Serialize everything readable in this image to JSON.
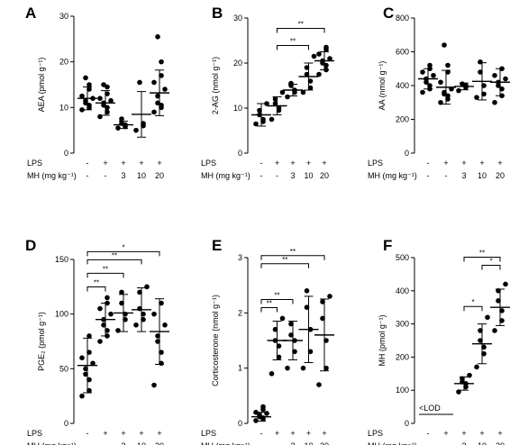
{
  "figure": {
    "row_labels": {
      "lps": "LPS",
      "mh": "MH (mg kg⁻¹)"
    }
  },
  "chart_data": [
    {
      "type": "scatter",
      "panel": "A",
      "ylabel": "AEA (pmol g⁻¹)",
      "ylim": [
        0,
        30
      ],
      "yticks": [
        0,
        10,
        20,
        30
      ],
      "groups": [
        {
          "lps": "-",
          "mh": "-",
          "points": [
            9.5,
            10,
            10.5,
            11,
            11.5,
            12,
            12.5,
            14,
            15,
            16.5
          ],
          "mean": 12,
          "sd": 2.5
        },
        {
          "lps": "+",
          "mh": "-",
          "points": [
            8,
            9,
            10,
            10.5,
            11,
            11.5,
            12,
            13,
            14.5,
            15
          ],
          "mean": 11,
          "sd": 2.7
        },
        {
          "lps": "+",
          "mh": "3",
          "points": [
            5.5,
            5.8,
            6.2,
            6.5,
            7.5
          ],
          "mean": 6.2,
          "sd": 0.8
        },
        {
          "lps": "+",
          "mh": "10",
          "points": [
            5,
            6,
            6.5,
            15.5
          ],
          "mean": 8.5,
          "sd": 5
        },
        {
          "lps": "+",
          "mh": "20",
          "points": [
            9,
            10,
            10.5,
            11,
            12.5,
            14,
            15.5,
            17,
            20,
            25.5
          ],
          "mean": 13.2,
          "sd": 5
        }
      ],
      "comparisons": []
    },
    {
      "type": "scatter",
      "panel": "B",
      "ylabel": "2-AG (nmol g⁻¹)",
      "ylim": [
        0,
        30
      ],
      "yticks": [
        0,
        10,
        20,
        30
      ],
      "groups": [
        {
          "lps": "-",
          "mh": "-",
          "points": [
            6.5,
            7,
            7.5,
            8.5,
            9.5,
            11
          ],
          "mean": 8.5,
          "sd": 2.5
        },
        {
          "lps": "+",
          "mh": "-",
          "points": [
            7.5,
            9.5,
            10,
            11,
            12,
            13.5
          ],
          "mean": 10.5,
          "sd": 2
        },
        {
          "lps": "+",
          "mh": "3",
          "points": [
            12.5,
            13.5,
            14,
            15,
            15.5
          ],
          "mean": 14,
          "sd": 1.3
        },
        {
          "lps": "+",
          "mh": "10",
          "points": [
            13.5,
            14.5,
            16,
            17.5,
            19,
            21.5
          ],
          "mean": 17,
          "sd": 3
        },
        {
          "lps": "+",
          "mh": "20",
          "points": [
            17.5,
            18.5,
            19.5,
            20,
            20.5,
            21,
            22,
            23,
            23.5
          ],
          "mean": 20.5,
          "sd": 2
        }
      ],
      "comparisons": [
        {
          "from": 1,
          "to": 4,
          "label": "**"
        },
        {
          "from": 1,
          "to": 3,
          "label": "**"
        }
      ]
    },
    {
      "type": "scatter",
      "panel": "C",
      "ylabel": "AA (nmol g⁻¹)",
      "ylim": [
        0,
        800
      ],
      "yticks": [
        0,
        200,
        400,
        600,
        800
      ],
      "groups": [
        {
          "lps": "-",
          "mh": "-",
          "points": [
            360,
            380,
            400,
            420,
            440,
            460,
            480,
            500,
            520
          ],
          "mean": 440,
          "sd": 60
        },
        {
          "lps": "+",
          "mh": "-",
          "points": [
            300,
            320,
            340,
            350,
            360,
            380,
            420,
            480,
            520,
            640
          ],
          "mean": 390,
          "sd": 100
        },
        {
          "lps": "+",
          "mh": "3",
          "points": [
            370,
            390,
            400,
            410
          ],
          "mean": 395,
          "sd": 20
        },
        {
          "lps": "+",
          "mh": "10",
          "points": [
            330,
            350,
            400,
            480,
            540
          ],
          "mean": 425,
          "sd": 110
        },
        {
          "lps": "+",
          "mh": "20",
          "points": [
            300,
            340,
            380,
            400,
            420,
            440,
            460,
            500
          ],
          "mean": 420,
          "sd": 80
        }
      ],
      "comparisons": []
    },
    {
      "type": "scatter",
      "panel": "D",
      "ylabel": "PGE₂ (pmol g⁻¹)",
      "ylim": [
        0,
        150
      ],
      "yticks": [
        0,
        50,
        100,
        150
      ],
      "groups": [
        {
          "lps": "-",
          "mh": "-",
          "points": [
            25,
            30,
            40,
            45,
            50,
            55,
            60,
            65,
            80
          ],
          "mean": 53,
          "sd": 25
        },
        {
          "lps": "+",
          "mh": "-",
          "points": [
            75,
            80,
            85,
            90,
            95,
            100,
            105,
            110,
            115
          ],
          "mean": 95,
          "sd": 15
        },
        {
          "lps": "+",
          "mh": "3",
          "points": [
            85,
            95,
            100,
            110,
            120
          ],
          "mean": 101,
          "sd": 17
        },
        {
          "lps": "+",
          "mh": "10",
          "points": [
            90,
            95,
            100,
            105,
            120,
            125
          ],
          "mean": 104,
          "sd": 20
        },
        {
          "lps": "+",
          "mh": "20",
          "points": [
            35,
            55,
            65,
            75,
            80,
            90,
            100,
            110
          ],
          "mean": 84,
          "sd": 30
        }
      ],
      "comparisons": [
        {
          "from": 0,
          "to": 1,
          "label": "**"
        },
        {
          "from": 0,
          "to": 2,
          "label": "**"
        },
        {
          "from": 0,
          "to": 3,
          "label": "**"
        },
        {
          "from": 0,
          "to": 4,
          "label": "*"
        }
      ]
    },
    {
      "type": "scatter",
      "panel": "E",
      "ylabel": "Corticosterone (nmol g⁻¹)",
      "ylim": [
        0,
        3
      ],
      "yticks": [
        0,
        1,
        2,
        3
      ],
      "groups": [
        {
          "lps": "-",
          "mh": "-",
          "points": [
            0.05,
            0.08,
            0.1,
            0.12,
            0.15,
            0.18,
            0.2,
            0.25,
            0.3
          ],
          "mean": 0.12,
          "sd": 0.08
        },
        {
          "lps": "+",
          "mh": "-",
          "points": [
            0.9,
            1.2,
            1.4,
            1.5,
            1.7,
            1.9
          ],
          "mean": 1.5,
          "sd": 0.35
        },
        {
          "lps": "+",
          "mh": "3",
          "points": [
            1.0,
            1.3,
            1.5,
            1.6,
            1.8
          ],
          "mean": 1.5,
          "sd": 0.35
        },
        {
          "lps": "+",
          "mh": "10",
          "points": [
            1.0,
            1.3,
            1.7,
            2.1,
            2.4
          ],
          "mean": 1.7,
          "sd": 0.6
        },
        {
          "lps": "+",
          "mh": "20",
          "points": [
            0.7,
            1.0,
            1.5,
            1.9,
            2.2,
            2.3
          ],
          "mean": 1.6,
          "sd": 0.65
        }
      ],
      "comparisons": [
        {
          "from": 0,
          "to": 1,
          "label": "**"
        },
        {
          "from": 0,
          "to": 2,
          "label": "**"
        },
        {
          "from": 0,
          "to": 3,
          "label": "**"
        },
        {
          "from": 0,
          "to": 4,
          "label": "**"
        }
      ]
    },
    {
      "type": "scatter",
      "panel": "F",
      "ylabel": "MH (pmol g⁻¹)",
      "ylim": [
        0,
        500
      ],
      "yticks": [
        0,
        100,
        200,
        300,
        400,
        500
      ],
      "groups": [
        {
          "lps": "-",
          "mh": "-",
          "points": [],
          "lod": true
        },
        {
          "lps": "+",
          "mh": "-",
          "points": [],
          "lod": true
        },
        {
          "lps": "+",
          "mh": "3",
          "points": [
            95,
            110,
            120,
            125,
            135,
            145
          ],
          "mean": 120,
          "sd": 20
        },
        {
          "lps": "+",
          "mh": "10",
          "points": [
            170,
            210,
            230,
            250,
            280,
            320
          ],
          "mean": 240,
          "sd": 60
        },
        {
          "lps": "+",
          "mh": "20",
          "points": [
            280,
            310,
            340,
            370,
            400,
            420
          ],
          "mean": 350,
          "sd": 55
        }
      ],
      "lod_label": "<LOD",
      "comparisons": [
        {
          "from": 2,
          "to": 3,
          "label": "*"
        },
        {
          "from": 3,
          "to": 4,
          "label": "*"
        },
        {
          "from": 2,
          "to": 4,
          "label": "**"
        }
      ]
    }
  ]
}
